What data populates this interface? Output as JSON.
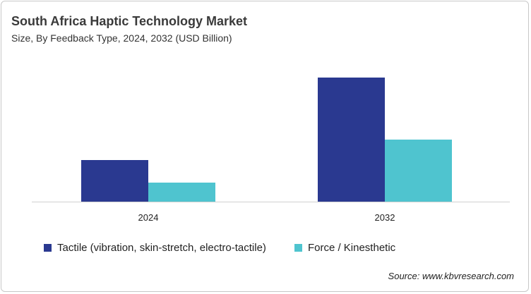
{
  "title": "South Africa Haptic Technology Market",
  "subtitle": "Size, By Feedback Type, 2024, 2032 (USD Billion)",
  "source": "Source: www.kbvresearch.com",
  "chart_data": {
    "type": "bar",
    "title": "South Africa Haptic Technology Market",
    "subtitle": "Size, By Feedback Type, 2024, 2032 (USD Billion)",
    "categories": [
      "2024",
      "2032"
    ],
    "series": [
      {
        "name": "Tactile (vibration, skin-stretch, electro-tactile)",
        "values": [
          0.59,
          1.76
        ],
        "color": "#2a3990"
      },
      {
        "name": "Force / Kinesthetic",
        "values": [
          0.27,
          0.88
        ],
        "color": "#4fc4cf"
      }
    ],
    "xlabel": "",
    "ylabel": "",
    "ylim": [
      0,
      1.8
    ],
    "y_axis_shown": false,
    "grid": false,
    "legend_position": "bottom"
  }
}
